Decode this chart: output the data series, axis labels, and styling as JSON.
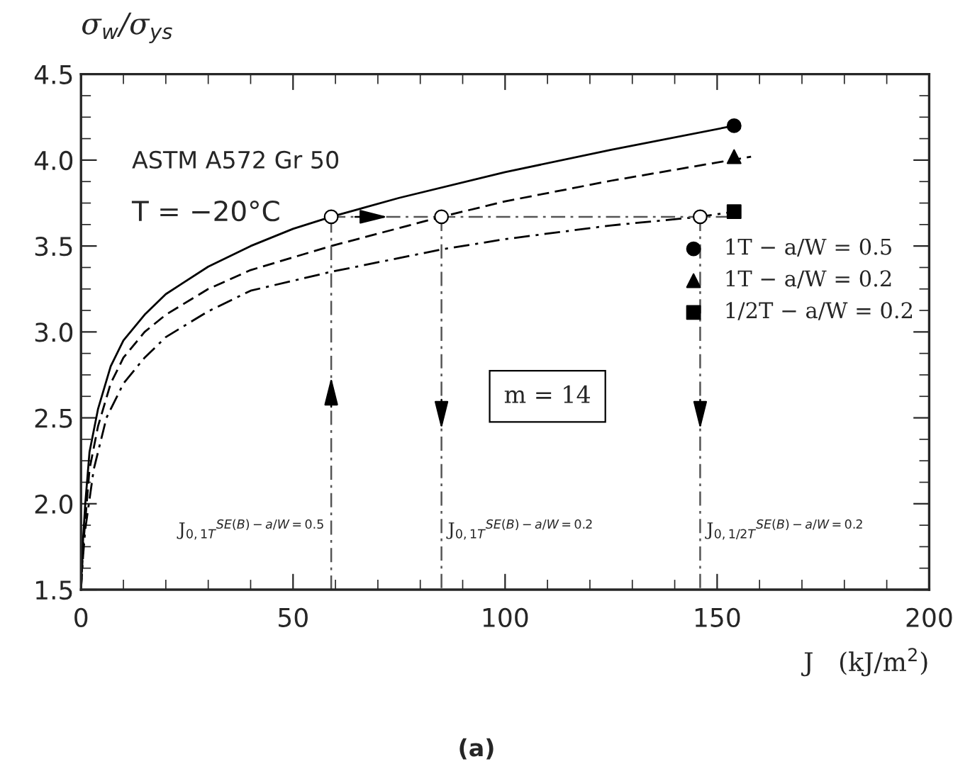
{
  "chart_data": {
    "type": "line",
    "ylabel": "σ$_{w}$/σ$_{ys}$",
    "xlabel": "J   (kJ/m$^{2}$)",
    "xlim": [
      0,
      200
    ],
    "xticks": [
      0,
      50,
      100,
      150,
      200
    ],
    "ylim": [
      1.5,
      4.5
    ],
    "yticks": [
      1.5,
      {
        "value": 2,
        "label": "2.0"
      },
      2.5,
      {
        "value": 3,
        "label": "3.0"
      },
      3.5,
      {
        "value": 4,
        "label": "4.0"
      },
      4.5
    ],
    "grid": false,
    "legend": "right",
    "series": [
      {
        "color": "#000000",
        "line_style": "solid",
        "marker": "none",
        "x": [
          0,
          0.5,
          1,
          2,
          4,
          7,
          10,
          15,
          20,
          30,
          40,
          50,
          59,
          75,
          100,
          125,
          154
        ],
        "values": [
          1.5,
          1.8,
          2.0,
          2.3,
          2.55,
          2.8,
          2.95,
          3.1,
          3.22,
          3.38,
          3.5,
          3.6,
          3.67,
          3.78,
          3.93,
          4.06,
          4.2
        ]
      },
      {
        "color": "#000000",
        "line_style": "dashed",
        "marker": "none",
        "x": [
          0,
          0.5,
          1,
          2,
          4,
          7,
          10,
          15,
          20,
          30,
          40,
          59,
          85,
          100,
          125,
          158
        ],
        "values": [
          1.5,
          1.75,
          1.9,
          2.2,
          2.45,
          2.7,
          2.85,
          3.0,
          3.1,
          3.25,
          3.36,
          3.5,
          3.67,
          3.76,
          3.88,
          4.02
        ]
      },
      {
        "color": "#000000",
        "line_style": "dashdot",
        "marker": "none",
        "x": [
          0,
          0.5,
          1,
          3,
          6,
          10,
          15,
          20,
          30,
          40,
          59,
          85,
          100,
          125,
          146,
          154
        ],
        "values": [
          1.5,
          1.7,
          1.85,
          2.2,
          2.5,
          2.7,
          2.85,
          2.97,
          3.12,
          3.24,
          3.35,
          3.48,
          3.54,
          3.62,
          3.67,
          3.7
        ]
      },
      {
        "color": "#555555",
        "line_style": "dashdot",
        "marker": "none",
        "x": [
          59,
          154
        ],
        "values": [
          3.67,
          3.67
        ]
      },
      {
        "color": "#555555",
        "line_style": "dashdot",
        "marker": "none",
        "x": [
          59,
          59
        ],
        "values": [
          1.5,
          3.67
        ]
      },
      {
        "color": "#555555",
        "line_style": "dashdot",
        "marker": "none",
        "x": [
          85,
          85
        ],
        "values": [
          3.67,
          1.5
        ]
      },
      {
        "color": "#555555",
        "line_style": "dashdot",
        "marker": "none",
        "x": [
          146,
          146
        ],
        "values": [
          3.67,
          1.5
        ]
      },
      {
        "type": "scatter",
        "color": "#ffffff",
        "marker": "circle",
        "x": [
          59,
          85,
          146
        ],
        "values": [
          3.67,
          3.67,
          3.67
        ]
      },
      {
        "type": "scatter",
        "name": "1T − a/W = 0.5",
        "color": "#000000",
        "marker": "circle",
        "x": [
          154
        ],
        "values": [
          4.2
        ]
      },
      {
        "type": "scatter",
        "name": "1T − a/W = 0.2",
        "color": "#000000",
        "marker": "triangle",
        "x": [
          154
        ],
        "values": [
          4.02
        ]
      },
      {
        "type": "scatter",
        "name": "1/2T − a/W = 0.2",
        "color": "#000000",
        "marker": "square",
        "x": [
          154
        ],
        "values": [
          3.7
        ]
      }
    ],
    "annotations": [
      "ASTM A572 Gr 50",
      "T = −20°C",
      "m = 14",
      {
        "text": "J$_{0,1T}$$^{SE(B)−a/W=0.5}$",
        "x": 59,
        "y": 1.85
      },
      {
        "text": "J$_{0,1T}$$^{SE(B)−a/W=0.2}$",
        "x": 85,
        "y": 1.85
      },
      {
        "text": "J$_{0,1/2T}$$^{SE(B)−a/W=0.2}$",
        "x": 146,
        "y": 1.85
      },
      "(a)"
    ]
  }
}
